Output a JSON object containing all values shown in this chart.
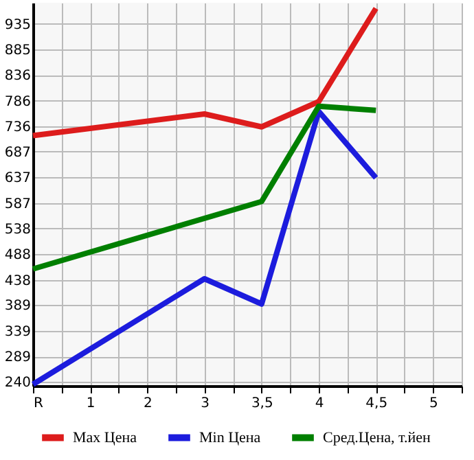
{
  "chart_data": {
    "type": "line",
    "categories": [
      "R",
      "1",
      "2",
      "3",
      "3,5",
      "4",
      "4,5",
      "5"
    ],
    "series": [
      {
        "name": "Max Цена",
        "color": "#dd1c1c",
        "values": [
          718,
          null,
          null,
          760,
          735,
          784,
          965,
          null
        ]
      },
      {
        "name": "Min Цена",
        "color": "#1c1cdd",
        "values": [
          235,
          null,
          null,
          440,
          391,
          765,
          636,
          null
        ]
      },
      {
        "name": "Сред.Цена, т.йен",
        "color": "#007f00",
        "values": [
          459,
          null,
          null,
          null,
          590,
          775,
          767,
          null
        ]
      }
    ],
    "ylim": [
      232,
      976
    ],
    "yticks": [
      240,
      289,
      339,
      389,
      438,
      488,
      538,
      587,
      637,
      687,
      736,
      786,
      836,
      885,
      935
    ],
    "grid": true,
    "legend": "bottom",
    "marker": "none",
    "line_style": "solid"
  }
}
